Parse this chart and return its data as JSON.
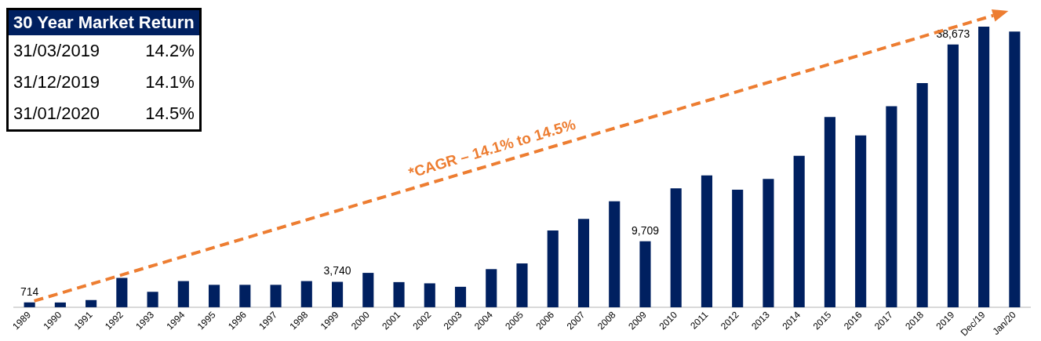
{
  "chart_data": {
    "type": "bar",
    "categories": [
      "1989",
      "1990",
      "1991",
      "1992",
      "1993",
      "1994",
      "1995",
      "1996",
      "1997",
      "1998",
      "1999",
      "2000",
      "2001",
      "2002",
      "2003",
      "2004",
      "2005",
      "2006",
      "2007",
      "2008",
      "2009",
      "2010",
      "2011",
      "2012",
      "2013",
      "2014",
      "2015",
      "2016",
      "2017",
      "2018",
      "2019",
      "Dec/19",
      "Jan/20"
    ],
    "values": [
      714,
      700,
      1060,
      4320,
      2270,
      3850,
      3300,
      3300,
      3300,
      3850,
      3740,
      5060,
      3700,
      3520,
      3010,
      5610,
      6450,
      11300,
      13000,
      15600,
      9709,
      17500,
      19400,
      17300,
      18900,
      22300,
      28000,
      25300,
      29600,
      33000,
      38673,
      41300,
      40600
    ],
    "value_labels": [
      "714",
      null,
      null,
      null,
      null,
      null,
      null,
      null,
      null,
      null,
      "3,740",
      null,
      null,
      null,
      null,
      null,
      null,
      null,
      null,
      null,
      "9,709",
      null,
      null,
      null,
      null,
      null,
      null,
      null,
      null,
      null,
      "38,673",
      null,
      null
    ],
    "color": "#002060",
    "annotations": [
      "30 Year Market Return",
      "31/03/2019",
      "14.2%",
      "31/12/2019",
      "14.1%",
      "31/01/2020",
      "14.5%",
      "*CAGR – 14.1% to 14.5%"
    ],
    "grid": false,
    "legend": false
  }
}
